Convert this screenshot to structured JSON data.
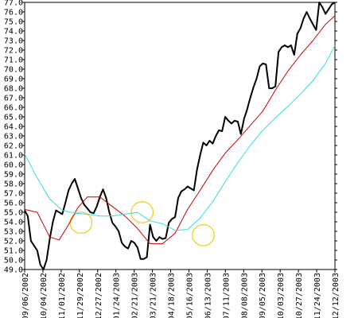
{
  "chart_data": {
    "type": "line",
    "ylim": [
      49.0,
      77.0
    ],
    "y_ticks": [
      49.0,
      50.0,
      51.0,
      52.0,
      53.0,
      54.0,
      55.0,
      56.0,
      57.0,
      58.0,
      59.0,
      60.0,
      61.0,
      62.0,
      63.0,
      64.0,
      65.0,
      66.0,
      67.0,
      68.0,
      69.0,
      70.0,
      71.0,
      72.0,
      73.0,
      74.0,
      75.0,
      76.0,
      77.0
    ],
    "x_tick_labels": [
      "09/06/2002",
      "10/04/2002",
      "11/01/2002",
      "11/29/2002",
      "12/27/2002",
      "01/24/2003",
      "02/21/2003",
      "03/21/2003",
      "04/18/2003",
      "05/16/2003",
      "06/13/2003",
      "07/11/2003",
      "08/08/2003",
      "09/05/2003",
      "10/03/2003",
      "10/27/2003",
      "11/24/2003",
      "12/12/2003"
    ],
    "grid": false,
    "series": [
      {
        "color": "#000000",
        "values": [
          [
            0,
            55.2
          ],
          [
            1,
            54.6
          ],
          [
            2,
            52.0
          ],
          [
            3,
            51.5
          ],
          [
            4,
            51.0
          ],
          [
            5,
            49.5
          ],
          [
            6,
            49.0
          ],
          [
            7,
            50.0
          ],
          [
            8,
            52.2
          ],
          [
            9,
            54.0
          ],
          [
            10,
            55.2
          ],
          [
            11,
            55.0
          ],
          [
            12,
            54.8
          ],
          [
            13,
            56.0
          ],
          [
            14,
            57.3
          ],
          [
            15,
            58.0
          ],
          [
            16,
            58.5
          ],
          [
            17,
            57.5
          ],
          [
            18,
            56.5
          ],
          [
            19,
            55.8
          ],
          [
            20,
            55.4
          ],
          [
            21,
            55.0
          ],
          [
            22,
            54.9
          ],
          [
            23,
            55.6
          ],
          [
            24,
            56.6
          ],
          [
            25,
            57.4
          ],
          [
            26,
            56.5
          ],
          [
            27,
            55.0
          ],
          [
            28,
            53.9
          ],
          [
            29,
            53.5
          ],
          [
            30,
            53.0
          ],
          [
            31,
            51.8
          ],
          [
            32,
            51.4
          ],
          [
            33,
            51.2
          ],
          [
            34,
            52.0
          ],
          [
            35,
            51.8
          ],
          [
            36,
            51.3
          ],
          [
            37,
            50.1
          ],
          [
            38,
            50.1
          ],
          [
            39,
            50.3
          ],
          [
            40,
            53.7
          ],
          [
            41,
            52.4
          ],
          [
            42,
            52.0
          ],
          [
            43,
            52.4
          ],
          [
            44,
            52.2
          ],
          [
            45,
            52.3
          ],
          [
            46,
            53.9
          ],
          [
            47,
            54.3
          ],
          [
            48,
            54.5
          ],
          [
            49,
            56.5
          ],
          [
            50,
            57.2
          ],
          [
            51,
            57.4
          ],
          [
            52,
            57.7
          ],
          [
            53,
            57.5
          ],
          [
            54,
            57.3
          ],
          [
            55,
            59.5
          ],
          [
            56,
            61.0
          ],
          [
            57,
            62.3
          ],
          [
            58,
            62.0
          ],
          [
            59,
            62.5
          ],
          [
            60,
            62.2
          ],
          [
            61,
            63.0
          ],
          [
            62,
            63.6
          ],
          [
            63,
            63.5
          ],
          [
            64,
            65.0
          ],
          [
            65,
            64.6
          ],
          [
            66,
            64.3
          ],
          [
            67,
            64.6
          ],
          [
            68,
            64.5
          ],
          [
            69,
            63.2
          ],
          [
            70,
            64.8
          ],
          [
            71,
            65.8
          ],
          [
            72,
            67.0
          ],
          [
            73,
            68.1
          ],
          [
            74,
            69.0
          ],
          [
            75,
            70.3
          ],
          [
            76,
            70.6
          ],
          [
            77,
            70.5
          ],
          [
            78,
            68.0
          ],
          [
            79,
            68.0
          ],
          [
            80,
            68.2
          ],
          [
            81,
            71.8
          ],
          [
            82,
            72.3
          ],
          [
            83,
            72.5
          ],
          [
            84,
            72.3
          ],
          [
            85,
            72.5
          ],
          [
            86,
            71.5
          ],
          [
            87,
            73.7
          ],
          [
            88,
            74.3
          ],
          [
            89,
            75.3
          ],
          [
            90,
            76.0
          ],
          [
            91,
            75.3
          ],
          [
            92,
            74.7
          ],
          [
            93,
            74.1
          ],
          [
            94,
            77.0
          ],
          [
            95,
            76.5
          ],
          [
            96,
            75.8
          ],
          [
            97,
            76.3
          ],
          [
            98,
            76.8
          ],
          [
            99,
            77.0
          ]
        ]
      },
      {
        "color": "#cc0000",
        "values": [
          [
            0,
            55.3
          ],
          [
            4,
            55.0
          ],
          [
            8,
            52.4
          ],
          [
            11,
            52.1
          ],
          [
            14,
            53.7
          ],
          [
            17,
            55.5
          ],
          [
            20,
            56.6
          ],
          [
            24,
            56.6
          ],
          [
            28,
            55.6
          ],
          [
            32,
            54.6
          ],
          [
            36,
            53.3
          ],
          [
            40,
            51.7
          ],
          [
            44,
            51.7
          ],
          [
            48,
            52.8
          ],
          [
            52,
            55.3
          ],
          [
            56,
            57.3
          ],
          [
            60,
            59.4
          ],
          [
            64,
            61.2
          ],
          [
            68,
            62.6
          ],
          [
            72,
            64.1
          ],
          [
            76,
            65.6
          ],
          [
            80,
            67.8
          ],
          [
            84,
            69.8
          ],
          [
            88,
            71.5
          ],
          [
            92,
            73.0
          ],
          [
            96,
            74.7
          ],
          [
            99,
            75.6
          ]
        ]
      },
      {
        "color": "#33dddd",
        "values": [
          [
            0,
            61.1
          ],
          [
            4,
            58.6
          ],
          [
            8,
            56.4
          ],
          [
            12,
            55.2
          ],
          [
            16,
            54.9
          ],
          [
            20,
            54.8
          ],
          [
            24,
            54.6
          ],
          [
            28,
            54.6
          ],
          [
            32,
            54.8
          ],
          [
            36,
            55.0
          ],
          [
            40,
            54.1
          ],
          [
            44,
            53.8
          ],
          [
            48,
            53.1
          ],
          [
            52,
            53.2
          ],
          [
            56,
            54.4
          ],
          [
            60,
            56.1
          ],
          [
            64,
            58.2
          ],
          [
            68,
            60.2
          ],
          [
            72,
            62.0
          ],
          [
            76,
            63.6
          ],
          [
            80,
            64.9
          ],
          [
            84,
            66.1
          ],
          [
            88,
            67.4
          ],
          [
            92,
            68.8
          ],
          [
            96,
            70.6
          ],
          [
            99,
            72.5
          ]
        ]
      }
    ],
    "annotations": [
      {
        "shape": "ellipse",
        "color": "#f0d020",
        "cx": 18,
        "cy": 53.9,
        "rx": 3.5,
        "ry": 1.1
      },
      {
        "shape": "ellipse",
        "color": "#f0d020",
        "cx": 37.5,
        "cy": 55.0,
        "rx": 3.5,
        "ry": 1.1
      },
      {
        "shape": "ellipse",
        "color": "#f0d020",
        "cx": 57,
        "cy": 52.6,
        "rx": 3.5,
        "ry": 1.1
      }
    ],
    "title": "",
    "xlabel": "",
    "ylabel": ""
  }
}
